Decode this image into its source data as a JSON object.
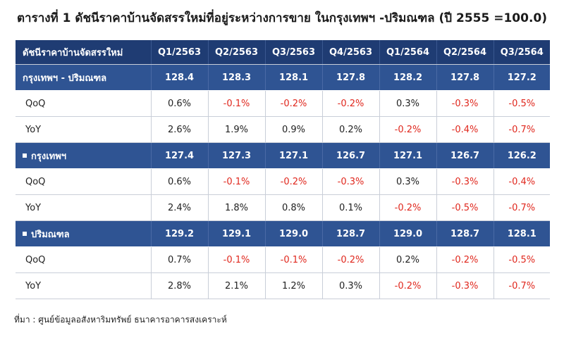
{
  "title": "ตารางที่ 1 ดัชนีราคาบ้านจัดสรรใหม่ที่อยู่ระหว่างการขาย ในกรุงเทพฯ -ปริมณฑล (ปี 2555 =100.0)",
  "header": {
    "label": "ดัชนีราคาบ้านจัดสรรใหม่",
    "columns": [
      "Q1/2563",
      "Q2/2563",
      "Q3/2563",
      "Q4/2563",
      "Q1/2564",
      "Q2/2564",
      "Q3/2564"
    ]
  },
  "groups": [
    {
      "label": "กรุงเทพฯ - ปริมณฑล",
      "bullet": false,
      "values": [
        "128.4",
        "128.3",
        "128.1",
        "127.8",
        "128.2",
        "127.8",
        "127.2"
      ],
      "qoq_label": "QoQ",
      "qoq": [
        "0.6%",
        "-0.1%",
        "-0.2%",
        "-0.2%",
        "0.3%",
        "-0.3%",
        "-0.5%"
      ],
      "yoy_label": "YoY",
      "yoy": [
        "2.6%",
        "1.9%",
        "0.9%",
        "0.2%",
        "-0.2%",
        "-0.4%",
        "-0.7%"
      ]
    },
    {
      "label": "กรุงเทพฯ",
      "bullet": true,
      "values": [
        "127.4",
        "127.3",
        "127.1",
        "126.7",
        "127.1",
        "126.7",
        "126.2"
      ],
      "qoq_label": "QoQ",
      "qoq": [
        "0.6%",
        "-0.1%",
        "-0.2%",
        "-0.3%",
        "0.3%",
        "-0.3%",
        "-0.4%"
      ],
      "yoy_label": "YoY",
      "yoy": [
        "2.4%",
        "1.8%",
        "0.8%",
        "0.1%",
        "-0.2%",
        "-0.5%",
        "-0.7%"
      ]
    },
    {
      "label": "ปริมณฑล",
      "bullet": true,
      "values": [
        "129.2",
        "129.1",
        "129.0",
        "128.7",
        "129.0",
        "128.7",
        "128.1"
      ],
      "qoq_label": "QoQ",
      "qoq": [
        "0.7%",
        "-0.1%",
        "-0.1%",
        "-0.2%",
        "0.2%",
        "-0.2%",
        "-0.5%"
      ],
      "yoy_label": "YoY",
      "yoy": [
        "2.8%",
        "2.1%",
        "1.2%",
        "0.3%",
        "-0.2%",
        "-0.3%",
        "-0.7%"
      ]
    }
  ],
  "source": "ที่มา : ศูนย์ข้อมูลอสังหาริมทรัพย์ ธนาคารอาคารสงเคราะห์",
  "colors": {
    "header_bg": "#1f3c73",
    "group_bg": "#2f5493",
    "negative_text": "#e0281e"
  }
}
